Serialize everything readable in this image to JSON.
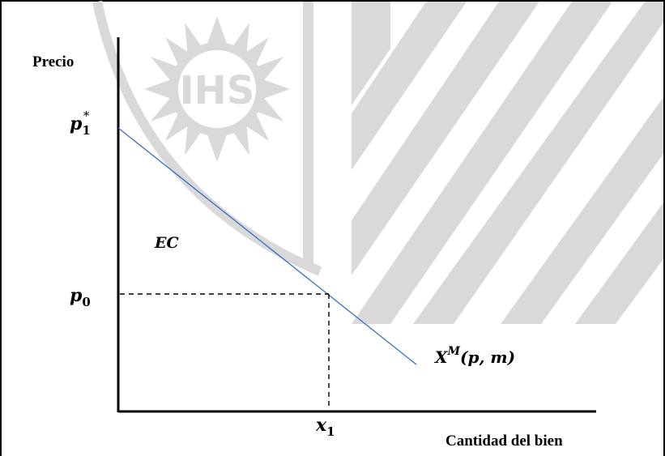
{
  "diagram": {
    "watermark_text": "IHS",
    "y_axis_label": "Precio",
    "x_axis_label": "Cantidad del bien",
    "price_high": {
      "base": "p",
      "sub": "1",
      "sup": "*"
    },
    "price_low": {
      "base": "p",
      "sub": "0"
    },
    "quantity": {
      "base": "x",
      "sub": "1"
    },
    "area_label": "EC",
    "curve_label": {
      "base": "X",
      "sup": "M",
      "args": "(p, m)"
    },
    "colors": {
      "axes": "#000000",
      "demand_curve": "#3a6fc4",
      "watermark": "#d9d9d9",
      "dashed_lines": "#000000"
    }
  }
}
